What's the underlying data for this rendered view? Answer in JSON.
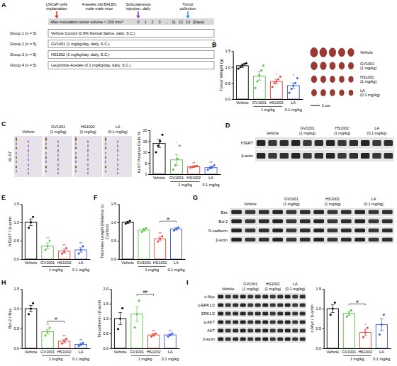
{
  "panel_letters": [
    "A",
    "B",
    "C",
    "D",
    "E",
    "F",
    "G",
    "H",
    "I"
  ],
  "schematic": {
    "steps": {
      "implantation": "LNCaP cells implantation",
      "mice": "4-weeks old BALB/c nude male mice",
      "injection": "Subcutaneous injection, daily",
      "collection": "Tumor collection"
    },
    "band_text": "After inoculation tumor volume > 200 mm³",
    "days": [
      "0",
      "1",
      "2",
      "3",
      "...",
      "11",
      "12",
      "13"
    ],
    "days_unit": "(Days)",
    "groups": [
      {
        "name": "Group 1 (n = 5)",
        "treatment": "Vehicle Control (0.9% Normal Saline, daily, S.C.)"
      },
      {
        "name": "Group 2 (n = 5)",
        "treatment": "GV1001 (1 mg/kg/day, daily, S.C.)"
      },
      {
        "name": "Group 3 (n = 5)",
        "treatment": "HS1002 (1 mg/kg/day, daily, S.C.)"
      },
      {
        "name": "Group 4 (n = 5)",
        "treatment": "Leuprolide Acetate (0.1 mg/kg/day, daily, S.C.)"
      }
    ]
  },
  "tumor_photo": {
    "labels": [
      "Vehicle",
      "GV1001 (1 mg/kg)",
      "HS1002 (1 mg/kg)",
      "LA (0.1 mg/kg)"
    ],
    "scale_bar": "1 cm"
  },
  "ihc": {
    "stain": "Ki-67",
    "labels": [
      "Vehicle",
      "GV1001 (1 mg/kg)",
      "HS1002 (1 mg/kg)",
      "LA (0.1 mg/kg)"
    ]
  },
  "blots": [
    {
      "lanes": [
        "Vehicle",
        "GV1001 (1 mg/kg)",
        "HS1002 (1 mg/kg)",
        "LA (0.1 mg/kg)"
      ],
      "bands": [
        "hTERT",
        "β-actin"
      ]
    },
    {
      "lanes": [
        "Vehicle",
        "GV1001 (1 mg/kg)",
        "HS1002 (1 mg/kg)",
        "LA (0.1 mg/kg)"
      ],
      "bands": [
        "Bax",
        "Bcl-2",
        "N-cadherin",
        "β-actin"
      ]
    },
    {
      "lanes": [
        "Vehicle",
        "GV1001 (1 mg/kg)",
        "HS1002 (1 mg/kg)",
        "LA (0.1 mg/kg)"
      ],
      "bands": [
        "c-Myc",
        "p-ERK1/2",
        "ERK1/2",
        "p-AKT",
        "AKT",
        "β-actin"
      ]
    }
  ],
  "chart_data": [
    {
      "type": "bar",
      "ylabel": "Tumor Weight (g)",
      "categories": [
        "Vehicle",
        "GV1001",
        "HS1002",
        "LA"
      ],
      "sub_categories": [
        null,
        "1 mg/kg",
        "1 mg/kg",
        "0.1 mg/kg"
      ],
      "colors": [
        "#000000",
        "#5cbf4a",
        "#e8423b",
        "#3b5bd6"
      ],
      "values": [
        1.04,
        0.72,
        0.55,
        0.42
      ],
      "errors": [
        0.05,
        0.13,
        0.07,
        0.08
      ],
      "points": [
        [
          0.95,
          1.0,
          1.05,
          1.1,
          1.12
        ],
        [
          0.35,
          0.55,
          0.75,
          0.9,
          1.05
        ],
        [
          0.38,
          0.5,
          0.55,
          0.62,
          0.7
        ],
        [
          0.2,
          0.32,
          0.42,
          0.5,
          0.65
        ]
      ],
      "significance": [
        null,
        null,
        "*",
        "*"
      ],
      "ylim": [
        0,
        1.5
      ],
      "yticks": [
        {
          "value": 0,
          "label": "0.0"
        },
        0.5,
        {
          "value": 1,
          "label": "1.0"
        },
        1.5
      ]
    },
    {
      "type": "bar",
      "ylabel": "Ki-67 Positive Cells %",
      "categories": [
        "Vehicle",
        "GV1001",
        "HS1002",
        "LA"
      ],
      "sub_categories": [
        null,
        "1 mg/kg",
        "1 mg/kg",
        "0.1 mg/kg"
      ],
      "colors": [
        "#000000",
        "#5cbf4a",
        "#e8423b",
        "#3b5bd6"
      ],
      "values": [
        14,
        6.5,
        3.4,
        3.0
      ],
      "errors": [
        1.8,
        2.5,
        0.3,
        0.6
      ],
      "points": [
        [
          10,
          13,
          15,
          18
        ],
        [
          2,
          4,
          7,
          13
        ],
        [
          3,
          3.2,
          3.6,
          3.8
        ],
        [
          2,
          2.8,
          3.2,
          4
        ]
      ],
      "significance": [
        null,
        "*",
        "**",
        "**"
      ],
      "ylim": [
        0,
        20
      ],
      "yticks": [
        0,
        5,
        10,
        15,
        20
      ]
    },
    {
      "type": "bar",
      "ylabel": "hTERT / β-actin",
      "categories": [
        "Vehicle",
        "GV1001",
        "HS1002",
        "LA"
      ],
      "sub_categories": [
        null,
        "1 mg/kg",
        "1 mg/kg",
        "0.1 mg/kg"
      ],
      "colors": [
        "#000000",
        "#5cbf4a",
        "#e8423b",
        "#3b5bd6"
      ],
      "values": [
        1.0,
        0.36,
        0.22,
        0.25
      ],
      "errors": [
        0.09,
        0.08,
        0.05,
        0.06
      ],
      "points": [
        [
          0.85,
          1.0,
          1.15
        ],
        [
          0.25,
          0.35,
          0.5
        ],
        [
          0.15,
          0.2,
          0.3
        ],
        [
          0.15,
          0.25,
          0.35
        ]
      ],
      "significance": [
        null,
        "**",
        "**",
        "**"
      ],
      "ylim": [
        0,
        1.5
      ],
      "yticks": [
        {
          "value": 0,
          "label": "0.0"
        },
        0.5,
        {
          "value": 1,
          "label": "1.0"
        },
        1.5
      ]
    },
    {
      "type": "bar",
      "ylabel": "Telomere Length (Relative to Control)",
      "categories": [
        "Vehicle",
        "GV1001",
        "HS1002",
        "LA"
      ],
      "sub_categories": [
        null,
        "1 mg/kg",
        "1 mg/kg",
        "0.1 mg/kg"
      ],
      "colors": [
        "#000000",
        "#5cbf4a",
        "#e8423b",
        "#3b5bd6"
      ],
      "values": [
        1.0,
        0.79,
        0.55,
        0.82
      ],
      "errors": [
        0.03,
        0.04,
        0.05,
        0.03
      ],
      "points": [
        [
          0.96,
          1.0,
          1.04
        ],
        [
          0.74,
          0.8,
          0.84
        ],
        [
          0.48,
          0.55,
          0.62
        ],
        [
          0.78,
          0.82,
          0.86
        ]
      ],
      "significance": [
        null,
        null,
        "**",
        null
      ],
      "comparisons": [
        {
          "text": "#",
          "from": "HS1002",
          "to": "LA"
        }
      ],
      "ylim": [
        0,
        1.5
      ],
      "yticks": [
        {
          "value": 0,
          "label": "0.0"
        },
        0.5,
        {
          "value": 1,
          "label": "1.0"
        },
        1.5
      ]
    },
    {
      "type": "bar",
      "ylabel": "Bcl-2 / Bax",
      "categories": [
        "Vehicle",
        "GV1001",
        "HS1002",
        "LA"
      ],
      "sub_categories": [
        null,
        "1 mg/kg",
        "1 mg/kg",
        "0.1 mg/kg"
      ],
      "colors": [
        "#000000",
        "#5cbf4a",
        "#e8423b",
        "#3b5bd6"
      ],
      "values": [
        1.0,
        0.42,
        0.18,
        0.1
      ],
      "errors": [
        0.08,
        0.06,
        0.04,
        0.03
      ],
      "points": [
        [
          0.86,
          1.0,
          1.14
        ],
        [
          0.32,
          0.42,
          0.52
        ],
        [
          0.12,
          0.18,
          0.24
        ],
        [
          0.06,
          0.1,
          0.14
        ]
      ],
      "significance": [
        null,
        "**",
        "**",
        "**"
      ],
      "comparisons": [
        {
          "text": "#",
          "from": "GV1001",
          "to": "HS1002"
        }
      ],
      "ylim": [
        0,
        1.5
      ],
      "yticks": [
        {
          "value": 0,
          "label": "0.0"
        },
        0.5,
        {
          "value": 1,
          "label": "1.0"
        },
        1.5
      ]
    },
    {
      "type": "bar",
      "ylabel": "N-cadherin / β-actin",
      "categories": [
        "Vehicle",
        "GV1001",
        "HS1002",
        "LA"
      ],
      "sub_categories": [
        null,
        "1 mg/kg",
        "1 mg/kg",
        "0.1 mg/kg"
      ],
      "colors": [
        "#000000",
        "#5cbf4a",
        "#e8423b",
        "#3b5bd6"
      ],
      "values": [
        1.0,
        1.15,
        0.45,
        0.45
      ],
      "errors": [
        0.2,
        0.25,
        0.04,
        0.03
      ],
      "points": [
        [
          0.65,
          1.0,
          1.35
        ],
        [
          0.7,
          1.15,
          1.6
        ],
        [
          0.4,
          0.45,
          0.5
        ],
        [
          0.4,
          0.45,
          0.5
        ]
      ],
      "significance": [
        null,
        null,
        "**",
        "**"
      ],
      "comparisons": [
        {
          "text": "##",
          "from": "GV1001",
          "to": "HS1002"
        }
      ],
      "ylim": [
        0,
        2
      ],
      "yticks": [
        {
          "value": 0,
          "label": "0.0"
        },
        0.5,
        {
          "value": 1,
          "label": "1.0"
        },
        1.5,
        {
          "value": 2,
          "label": "2.0"
        }
      ]
    },
    {
      "type": "bar",
      "ylabel": "c-Myc / β-actin",
      "categories": [
        "Vehicle",
        "GV1001",
        "HS1002",
        "LA"
      ],
      "sub_categories": [
        null,
        "1 mg/kg",
        "1 mg/kg",
        "0.1 mg/kg"
      ],
      "colors": [
        "#000000",
        "#5cbf4a",
        "#e8423b",
        "#3b5bd6"
      ],
      "values": [
        1.0,
        0.88,
        0.4,
        0.6
      ],
      "errors": [
        0.1,
        0.05,
        0.08,
        0.15
      ],
      "points": [
        [
          0.85,
          1.0,
          1.15
        ],
        [
          0.8,
          0.88,
          0.96
        ],
        [
          0.28,
          0.4,
          0.52
        ],
        [
          0.35,
          0.6,
          0.85
        ]
      ],
      "significance": [
        null,
        null,
        "*",
        null
      ],
      "comparisons": [
        {
          "text": "#",
          "from": "GV1001",
          "to": "HS1002"
        }
      ],
      "ylim": [
        0,
        1.5
      ],
      "yticks": [
        {
          "value": 0,
          "label": "0.0"
        },
        0.5,
        {
          "value": 1,
          "label": "1.0"
        },
        1.5
      ]
    }
  ]
}
